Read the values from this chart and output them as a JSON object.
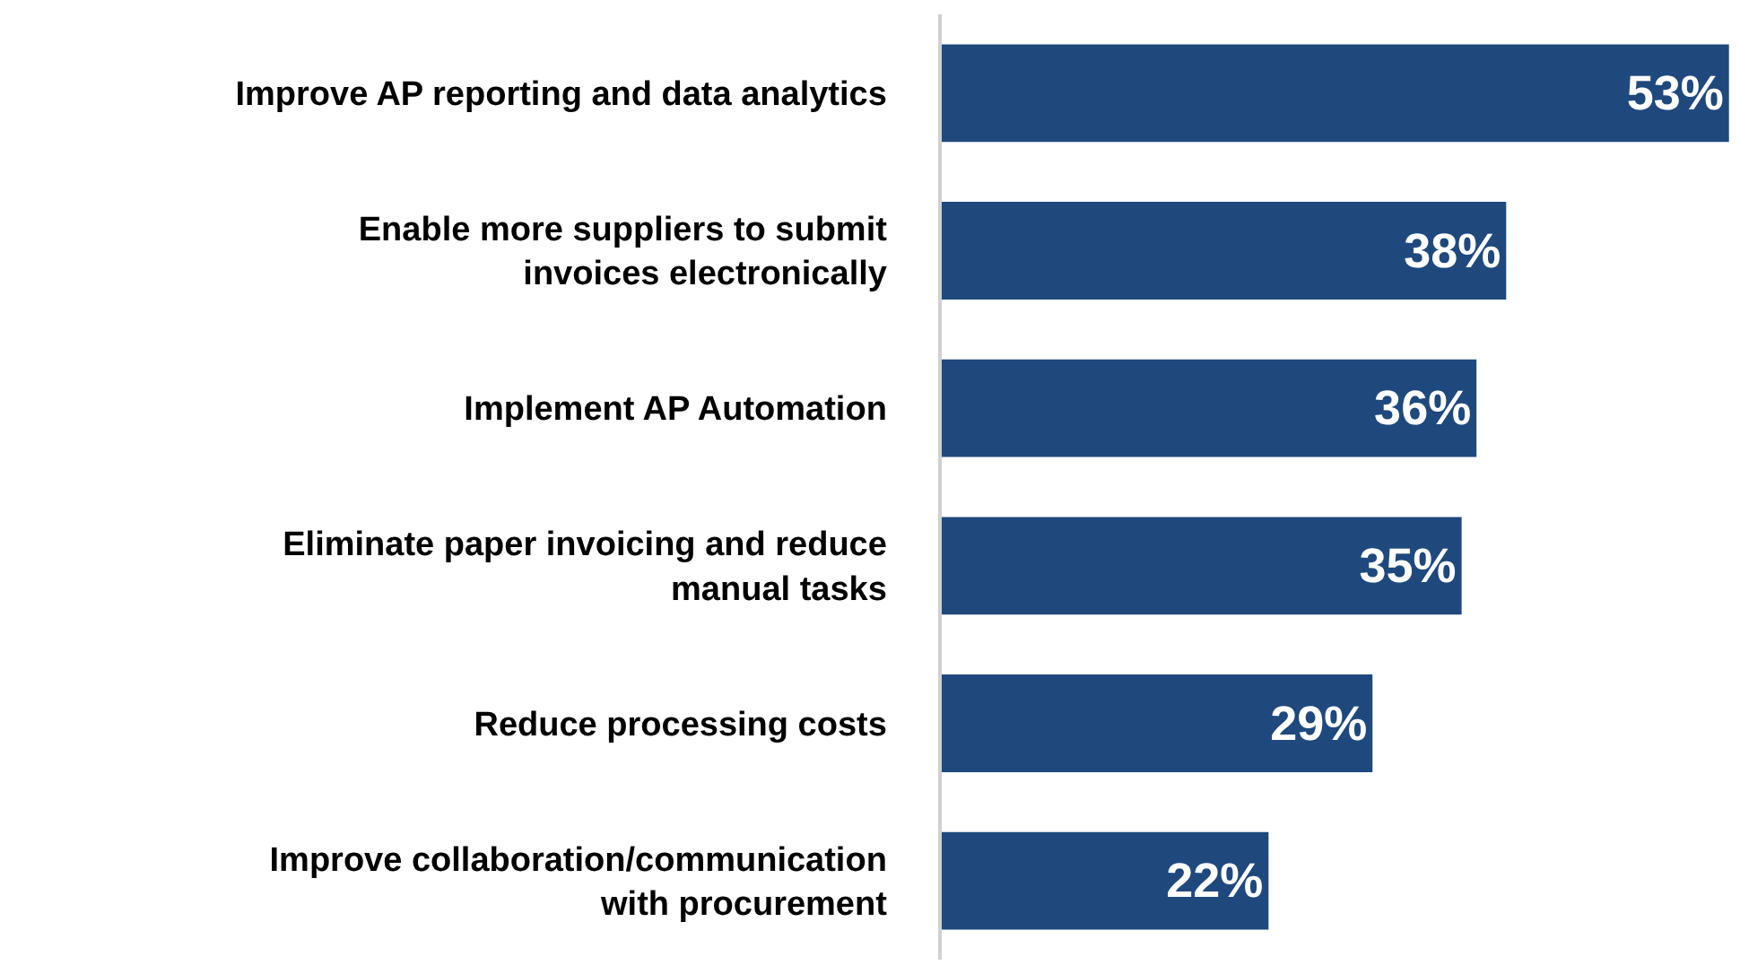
{
  "chart_data": {
    "type": "bar",
    "orientation": "horizontal",
    "categories": [
      "Improve AP reporting and data analytics",
      "Enable more suppliers to submit invoices electronically",
      "Implement AP Automation",
      "Eliminate paper invoicing and reduce manual tasks",
      "Reduce processing costs",
      "Improve collaboration/communication with procurement"
    ],
    "values": [
      53,
      38,
      36,
      35,
      29,
      22
    ],
    "value_labels": [
      "53%",
      "38%",
      "36%",
      "35%",
      "29%",
      "22%"
    ],
    "color": "#1f497d",
    "xlim": [
      0,
      53.5
    ],
    "tick_labels": "y"
  }
}
